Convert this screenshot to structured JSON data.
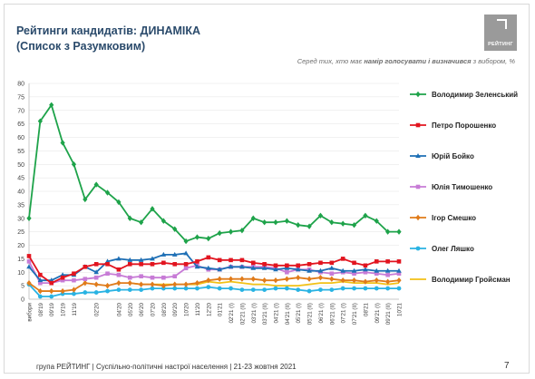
{
  "header": {
    "title_line1": "Рейтинги кандидатів: ДИНАМІКА",
    "title_line2": "(Список з Разумковим)",
    "subtitle_prefix": "Серед тих, хто має ",
    "subtitle_bold": "намір голосувати і визначився",
    "subtitle_suffix": " з вибором, %",
    "logo_text": "РЕЙТИНГ"
  },
  "footer": {
    "text": "група РЕЙТИНГ | Суспільно-політичні настрої населення | 21-23 жовтня 2021",
    "page_number": "7"
  },
  "colors": {
    "zelensky": "#1ea34a",
    "poroshenko": "#e2141f",
    "boyko": "#1e6fb5",
    "tymoshenko": "#c77bd6",
    "smeshko": "#e07b1a",
    "liashko": "#29b3e3",
    "groysman": "#f2c116"
  },
  "chart_data": {
    "type": "line",
    "categories": [
      "вибори",
      "08'19",
      "09'19",
      "10'19",
      "11'19",
      "",
      "02'20",
      "",
      "04'20",
      "05'20",
      "06'20",
      "07'20",
      "08'20",
      "09'20",
      "10'20",
      "11'20",
      "12'20",
      "01'21",
      "02'21 (I)",
      "02'21 (II)",
      "03'21 (I)",
      "03'21 (II)",
      "04'21 (I)",
      "04'21 (II)",
      "05'21 (I)",
      "05'21 (II)",
      "06'21 (I)",
      "06'21 (II)",
      "07'21 (I)",
      "07'21 (II)",
      "08'21",
      "09'21 (I)",
      "09'21 (II)",
      "10'21"
    ],
    "ylim": [
      0,
      80
    ],
    "yticks": [
      0,
      5,
      10,
      15,
      20,
      25,
      30,
      35,
      40,
      45,
      50,
      55,
      60,
      65,
      70,
      75,
      80
    ],
    "grid": true,
    "legend_position": "right",
    "series": [
      {
        "name": "Володимир Зеленський",
        "color_key": "zelensky",
        "marker": "diamond",
        "values": [
          30,
          66,
          72,
          58,
          50,
          37,
          42.5,
          39.5,
          36,
          30,
          28.5,
          33.5,
          29,
          26,
          21.5,
          23,
          22.5,
          24.5,
          25,
          25.5,
          30,
          28.5,
          28.5,
          29,
          27.5,
          27,
          31,
          28.5,
          28,
          27.5,
          31,
          29,
          25,
          25
        ]
      },
      {
        "name": "Петро Порошенко",
        "color_key": "poroshenko",
        "marker": "square",
        "values": [
          16,
          9,
          6,
          8,
          9.5,
          12,
          13,
          13,
          11,
          13,
          13,
          13,
          13.5,
          13,
          13,
          14,
          15.5,
          14.5,
          14.5,
          14.5,
          13.5,
          13,
          12.5,
          12.5,
          12.5,
          13,
          13.5,
          13.5,
          15,
          13.5,
          12.5,
          14,
          14,
          14
        ]
      },
      {
        "name": "Юрій Бойко",
        "color_key": "boyko",
        "marker": "triangle",
        "values": [
          12,
          7,
          7,
          9,
          9,
          12,
          10,
          14,
          15,
          14.5,
          14.5,
          15,
          16.5,
          16.5,
          17,
          12,
          11.5,
          11,
          12,
          12,
          11.5,
          11.5,
          11,
          11.5,
          11,
          10.5,
          10.5,
          11.5,
          10.5,
          10.5,
          11,
          10.5,
          10.5,
          10.5
        ]
      },
      {
        "name": "Юлія Тимошенко",
        "color_key": "tymoshenko",
        "marker": "square",
        "values": [
          14,
          6,
          6,
          7,
          7,
          7.5,
          8,
          9.5,
          9,
          8,
          8.5,
          8,
          8,
          8.5,
          11.5,
          12.5,
          11,
          11,
          12,
          12,
          12,
          12,
          11.5,
          10,
          11,
          11,
          10,
          9.5,
          10,
          9.5,
          10,
          9.5,
          9,
          9.5
        ]
      },
      {
        "name": "Ігор Смешко",
        "color_key": "smeshko",
        "marker": "diamond",
        "values": [
          6,
          3,
          3,
          3,
          3.5,
          6,
          5.5,
          5,
          6,
          6,
          5.5,
          5.5,
          5,
          5.5,
          5.5,
          6,
          7,
          7.5,
          7.5,
          7.5,
          7.5,
          7,
          7,
          7.5,
          8,
          7.5,
          8,
          7.5,
          7,
          7,
          6.5,
          7,
          6.5,
          7
        ]
      },
      {
        "name": "Олег Ляшко",
        "color_key": "liashko",
        "marker": "circle",
        "values": [
          5.5,
          1,
          1,
          2,
          2,
          2.5,
          2.5,
          3,
          3.5,
          3.5,
          3.5,
          4,
          4,
          4,
          4,
          4,
          4.5,
          4,
          4,
          3.5,
          3.5,
          3.5,
          4,
          4,
          3.5,
          3,
          3.5,
          3.5,
          4,
          4,
          4,
          4,
          4,
          4
        ]
      },
      {
        "name": "Володимир Гройсман",
        "color_key": "groysman",
        "marker": "none",
        "values": [
          null,
          null,
          null,
          null,
          null,
          null,
          null,
          null,
          null,
          6,
          5.5,
          5.5,
          5.5,
          5.5,
          5.5,
          5.5,
          6.5,
          6,
          6.5,
          6,
          5.5,
          5.5,
          5,
          5,
          5,
          5.5,
          6,
          6,
          6.5,
          6,
          6,
          6,
          5.5,
          6
        ]
      }
    ]
  }
}
